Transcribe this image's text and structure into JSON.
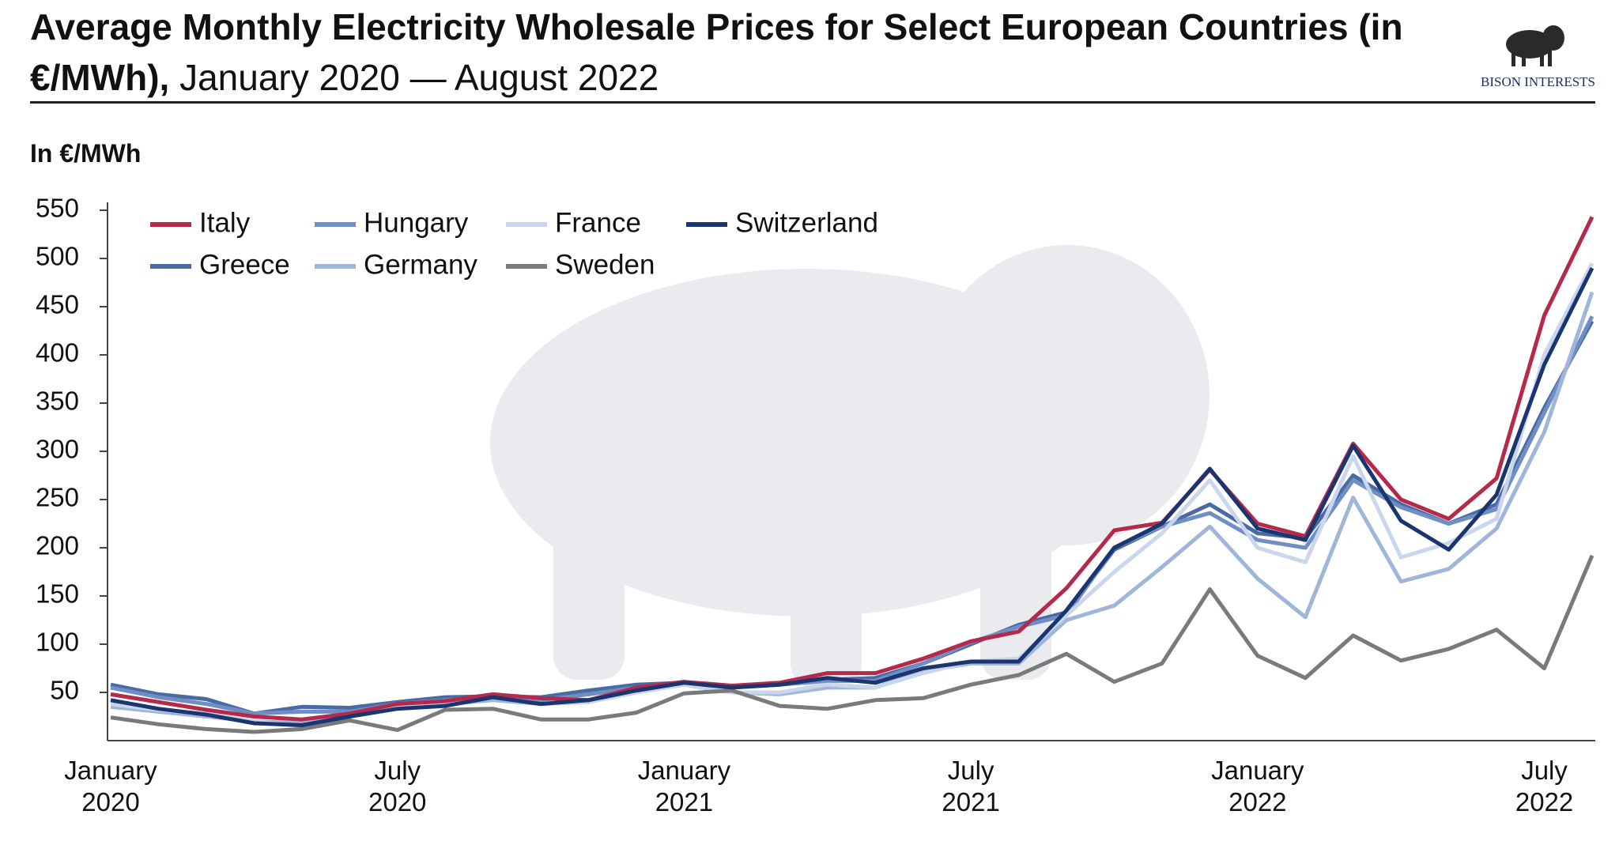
{
  "chart_data": {
    "type": "line",
    "title": "Average Monthly Electricity Wholesale Prices for Select European Countries (in €/MWh),",
    "subtitle": "January 2020 — August 2022",
    "brand": "BISON INTERESTS",
    "y_label": "In €/MWh",
    "categories": [
      "January 2020",
      null,
      null,
      null,
      null,
      null,
      "July 2020",
      null,
      null,
      null,
      null,
      null,
      "January 2021",
      null,
      null,
      null,
      null,
      null,
      "July 2021",
      null,
      null,
      null,
      null,
      null,
      "January 2022",
      null,
      null,
      null,
      null,
      null,
      "July 2022",
      null
    ],
    "ylim": [
      0,
      550
    ],
    "yticks": [
      50,
      100,
      150,
      200,
      250,
      300,
      350,
      400,
      450,
      500,
      550
    ],
    "grid": false,
    "legend": "top-left",
    "series": [
      {
        "name": "Italy",
        "color": "#b5294a",
        "values": [
          48,
          40,
          32,
          25,
          22,
          28,
          38,
          41,
          48,
          44,
          42,
          55,
          61,
          57,
          60,
          70,
          70,
          85,
          103,
          113,
          158,
          218,
          226,
          281,
          225,
          212,
          308,
          250,
          230,
          272,
          441,
          543
        ]
      },
      {
        "name": "Greece",
        "color": "#4a6aa6",
        "values": [
          58,
          48,
          43,
          28,
          35,
          34,
          40,
          45,
          46,
          45,
          52,
          58,
          60,
          56,
          58,
          63,
          65,
          80,
          100,
          120,
          133,
          198,
          222,
          245,
          215,
          210,
          275,
          245,
          225,
          245,
          345,
          435
        ]
      },
      {
        "name": "Hungary",
        "color": "#6f8fc4",
        "values": [
          55,
          45,
          38,
          28,
          30,
          30,
          38,
          42,
          45,
          42,
          48,
          55,
          60,
          55,
          58,
          62,
          62,
          80,
          102,
          118,
          130,
          200,
          222,
          236,
          208,
          200,
          270,
          242,
          225,
          240,
          340,
          440
        ]
      },
      {
        "name": "Germany",
        "color": "#9fb6da",
        "values": [
          35,
          30,
          25,
          20,
          18,
          27,
          35,
          38,
          42,
          38,
          40,
          50,
          58,
          50,
          48,
          55,
          55,
          72,
          80,
          80,
          125,
          140,
          180,
          222,
          168,
          128,
          252,
          165,
          178,
          220,
          320,
          465
        ]
      },
      {
        "name": "France",
        "color": "#c9d6ec",
        "values": [
          38,
          32,
          28,
          20,
          15,
          25,
          35,
          40,
          45,
          38,
          40,
          50,
          58,
          50,
          50,
          58,
          55,
          70,
          82,
          85,
          130,
          175,
          215,
          270,
          200,
          185,
          295,
          190,
          205,
          230,
          400,
          495
        ]
      },
      {
        "name": "Sweden",
        "color": "#7a7a7a",
        "values": [
          24,
          17,
          12,
          9,
          12,
          21,
          11,
          32,
          33,
          22,
          22,
          29,
          49,
          52,
          36,
          33,
          42,
          44,
          58,
          68,
          90,
          61,
          80,
          157,
          88,
          65,
          109,
          83,
          95,
          115,
          75,
          192
        ]
      },
      {
        "name": "Switzerland",
        "color": "#1b3570",
        "values": [
          42,
          33,
          27,
          18,
          16,
          25,
          33,
          36,
          45,
          38,
          42,
          52,
          60,
          55,
          58,
          65,
          60,
          75,
          82,
          82,
          135,
          200,
          225,
          282,
          220,
          208,
          306,
          228,
          198,
          255,
          390,
          490
        ]
      }
    ]
  }
}
